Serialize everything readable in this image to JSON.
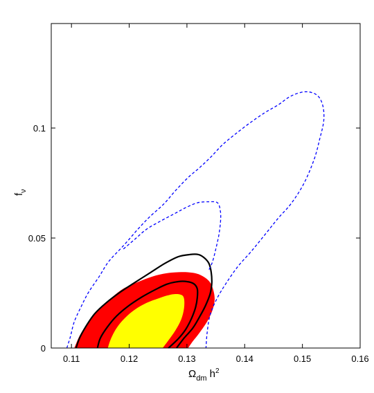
{
  "chart_data": {
    "type": "contour",
    "xlabel": "Ω_dm h²",
    "ylabel": "f_ν",
    "xlim": [
      0.1065,
      0.16
    ],
    "ylim": [
      0,
      0.1475
    ],
    "x_ticks": [
      {
        "value": 0.11,
        "label": "0.11"
      },
      {
        "value": 0.12,
        "label": "0.12"
      },
      {
        "value": 0.13,
        "label": "0.13"
      },
      {
        "value": 0.14,
        "label": "0.14"
      },
      {
        "value": 0.15,
        "label": "0.15"
      },
      {
        "value": 0.16,
        "label": "0.16"
      }
    ],
    "y_ticks": [
      {
        "value": 0,
        "label": "0"
      },
      {
        "value": 0.05,
        "label": "0.05"
      },
      {
        "value": 0.1,
        "label": "0.1"
      }
    ],
    "grid": false,
    "legend": "none",
    "series": [
      {
        "style": "filled",
        "color": "#ff0000",
        "points": [
          [
            0.1105,
            0.0
          ],
          [
            0.1115,
            0.006
          ],
          [
            0.113,
            0.012
          ],
          [
            0.115,
            0.018
          ],
          [
            0.117,
            0.023
          ],
          [
            0.119,
            0.027
          ],
          [
            0.1215,
            0.03
          ],
          [
            0.124,
            0.0325
          ],
          [
            0.1265,
            0.034
          ],
          [
            0.129,
            0.0345
          ],
          [
            0.131,
            0.0342
          ],
          [
            0.1325,
            0.033
          ],
          [
            0.1338,
            0.0305
          ],
          [
            0.1345,
            0.027
          ],
          [
            0.1348,
            0.022
          ],
          [
            0.1344,
            0.017
          ],
          [
            0.1335,
            0.012
          ],
          [
            0.1322,
            0.007
          ],
          [
            0.131,
            0.003
          ],
          [
            0.1302,
            0.0
          ]
        ]
      },
      {
        "style": "filled",
        "color": "#ffff00",
        "points": [
          [
            0.1163,
            0.0
          ],
          [
            0.1168,
            0.004
          ],
          [
            0.1178,
            0.009
          ],
          [
            0.1192,
            0.0135
          ],
          [
            0.121,
            0.0175
          ],
          [
            0.123,
            0.0205
          ],
          [
            0.125,
            0.0225
          ],
          [
            0.1265,
            0.0238
          ],
          [
            0.1278,
            0.0245
          ],
          [
            0.129,
            0.0242
          ],
          [
            0.1295,
            0.0225
          ],
          [
            0.1295,
            0.018
          ],
          [
            0.129,
            0.013
          ],
          [
            0.128,
            0.008
          ],
          [
            0.1268,
            0.0035
          ],
          [
            0.1258,
            0.0
          ]
        ]
      },
      {
        "style": "solid",
        "color": "#000000",
        "points": [
          [
            0.1108,
            0.0
          ],
          [
            0.1114,
            0.0045
          ],
          [
            0.1125,
            0.0098
          ],
          [
            0.114,
            0.0155
          ],
          [
            0.116,
            0.0205
          ],
          [
            0.1185,
            0.0255
          ],
          [
            0.121,
            0.0298
          ],
          [
            0.1238,
            0.0345
          ],
          [
            0.1262,
            0.0385
          ],
          [
            0.1285,
            0.0415
          ],
          [
            0.1305,
            0.0425
          ],
          [
            0.132,
            0.0425
          ],
          [
            0.133,
            0.041
          ],
          [
            0.1338,
            0.0385
          ],
          [
            0.1342,
            0.0345
          ],
          [
            0.1343,
            0.0295
          ],
          [
            0.134,
            0.0245
          ],
          [
            0.1332,
            0.0192
          ],
          [
            0.1322,
            0.0142
          ],
          [
            0.131,
            0.009
          ],
          [
            0.1295,
            0.0045
          ],
          [
            0.1282,
            0.0
          ]
        ]
      },
      {
        "style": "solid",
        "color": "#000000",
        "points": [
          [
            0.1145,
            0.0
          ],
          [
            0.115,
            0.0045
          ],
          [
            0.1162,
            0.0095
          ],
          [
            0.1178,
            0.0145
          ],
          [
            0.1198,
            0.019
          ],
          [
            0.1222,
            0.0232
          ],
          [
            0.1245,
            0.0265
          ],
          [
            0.1265,
            0.029
          ],
          [
            0.1285,
            0.0302
          ],
          [
            0.13,
            0.0302
          ],
          [
            0.1312,
            0.0292
          ],
          [
            0.1318,
            0.0268
          ],
          [
            0.1318,
            0.023
          ],
          [
            0.1315,
            0.0185
          ],
          [
            0.1308,
            0.0135
          ],
          [
            0.1298,
            0.0085
          ],
          [
            0.1285,
            0.0042
          ],
          [
            0.1268,
            0.0
          ]
        ]
      },
      {
        "style": "dashed",
        "color": "#0000ff",
        "points": [
          [
            0.1092,
            0.0
          ],
          [
            0.1098,
            0.005
          ],
          [
            0.1105,
            0.012
          ],
          [
            0.1118,
            0.0195
          ],
          [
            0.113,
            0.0255
          ],
          [
            0.1148,
            0.0325
          ],
          [
            0.1165,
            0.0395
          ],
          [
            0.119,
            0.0465
          ],
          [
            0.1215,
            0.054
          ],
          [
            0.1235,
            0.0595
          ],
          [
            0.126,
            0.0655
          ],
          [
            0.128,
            0.0715
          ],
          [
            0.1302,
            0.0775
          ],
          [
            0.1322,
            0.082
          ],
          [
            0.1342,
            0.087
          ],
          [
            0.1362,
            0.0925
          ],
          [
            0.1385,
            0.0975
          ],
          [
            0.141,
            0.1025
          ],
          [
            0.1435,
            0.107
          ],
          [
            0.1458,
            0.1105
          ],
          [
            0.148,
            0.1145
          ],
          [
            0.1505,
            0.1165
          ],
          [
            0.1525,
            0.115
          ],
          [
            0.1535,
            0.1105
          ],
          [
            0.1537,
            0.1035
          ],
          [
            0.153,
            0.095
          ],
          [
            0.152,
            0.0855
          ],
          [
            0.1502,
            0.0745
          ],
          [
            0.148,
            0.0655
          ],
          [
            0.1458,
            0.059
          ],
          [
            0.1432,
            0.0505
          ],
          [
            0.141,
            0.0435
          ],
          [
            0.1388,
            0.037
          ],
          [
            0.1368,
            0.0295
          ],
          [
            0.1352,
            0.0225
          ],
          [
            0.134,
            0.015
          ],
          [
            0.1335,
            0.007
          ],
          [
            0.1333,
            0.0
          ]
        ]
      },
      {
        "style": "dashed",
        "color": "#0000ff",
        "points": [
          [
            0.119,
            0.045
          ],
          [
            0.121,
            0.0495
          ],
          [
            0.123,
            0.054
          ],
          [
            0.1255,
            0.0578
          ],
          [
            0.1278,
            0.061
          ],
          [
            0.1298,
            0.0638
          ],
          [
            0.1318,
            0.066
          ],
          [
            0.1338,
            0.0665
          ],
          [
            0.1353,
            0.066
          ],
          [
            0.1358,
            0.062
          ],
          [
            0.1358,
            0.057
          ],
          [
            0.1355,
            0.051
          ],
          [
            0.135,
            0.045
          ],
          [
            0.1344,
            0.039
          ],
          [
            0.1338,
            0.0355
          ]
        ]
      }
    ]
  }
}
